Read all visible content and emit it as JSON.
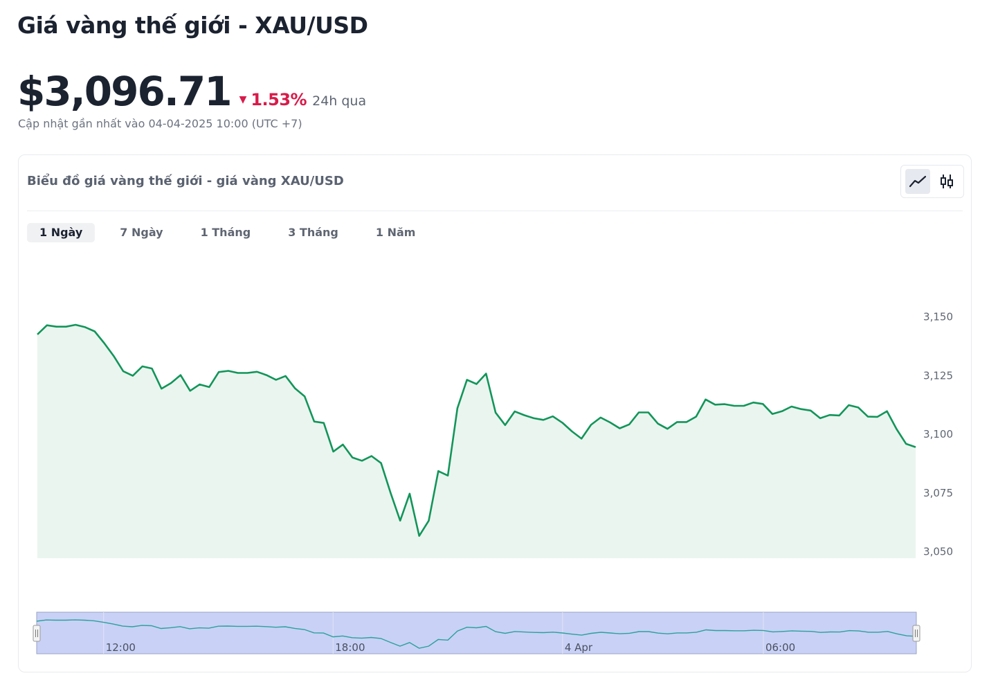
{
  "page": {
    "title": "Giá vàng thế giới - XAU/USD",
    "price": "$3,096.71",
    "change_direction": "down",
    "change_percent": "1.53%",
    "change_period": "24h qua",
    "updated": "Cập nhật gần nhất vào 04-04-2025 10:00 (UTC +7)"
  },
  "card": {
    "title": "Biểu đồ giá vàng thế giới - giá vàng XAU/USD",
    "chart_types": [
      {
        "name": "line",
        "icon": "line-chart-icon",
        "active": true
      },
      {
        "name": "candlestick",
        "icon": "candlestick-icon",
        "active": false
      }
    ],
    "ranges": [
      {
        "label": "1 Ngày",
        "active": true
      },
      {
        "label": "7 Ngày",
        "active": false
      },
      {
        "label": "1 Tháng",
        "active": false
      },
      {
        "label": "3 Tháng",
        "active": false
      },
      {
        "label": "1 Năm",
        "active": false
      }
    ]
  },
  "colors": {
    "line": "#12955a",
    "area": "#ebf5ef",
    "down": "#d81b4a",
    "navigator_fill": "#c9d1f6",
    "navigator_line": "#2aa19a"
  },
  "chart_data": {
    "type": "area",
    "y_ticks": [
      "3,150",
      "3,125",
      "3,100",
      "3,075",
      "3,050"
    ],
    "y_tick_values": [
      3150,
      3125,
      3100,
      3075,
      3050
    ],
    "ylim": [
      3050,
      3160
    ],
    "navigator_x_labels": [
      "12:00",
      "18:00",
      "4 Apr",
      "06:00"
    ],
    "navigator_x_label_index": [
      7,
      31,
      55,
      76
    ],
    "grid": false,
    "values": [
      3142.5,
      3146.4,
      3145.8,
      3145.8,
      3146.6,
      3145.6,
      3143.8,
      3138.8,
      3133.3,
      3126.8,
      3124.9,
      3128.9,
      3128.0,
      3119.4,
      3121.8,
      3125.2,
      3118.5,
      3121.2,
      3120.1,
      3126.5,
      3127.0,
      3126.1,
      3126.1,
      3126.6,
      3125.2,
      3123.2,
      3124.8,
      3119.5,
      3116.1,
      3105.4,
      3104.8,
      3092.6,
      3095.6,
      3090.1,
      3088.7,
      3090.7,
      3087.7,
      3075.0,
      3063.2,
      3074.7,
      3056.7,
      3063.2,
      3084.3,
      3082.4,
      3111.1,
      3123.2,
      3121.4,
      3125.8,
      3109.2,
      3103.9,
      3109.7,
      3108.1,
      3106.8,
      3106.1,
      3107.6,
      3104.9,
      3101.2,
      3098.1,
      3104.0,
      3107.1,
      3105.0,
      3102.5,
      3104.2,
      3109.3,
      3109.3,
      3104.5,
      3102.3,
      3105.2,
      3105.2,
      3107.5,
      3114.8,
      3112.6,
      3112.8,
      3112.1,
      3112.1,
      3113.5,
      3112.9,
      3108.6,
      3109.8,
      3111.8,
      3110.7,
      3110.1,
      3106.8,
      3108.2,
      3108.0,
      3112.4,
      3111.4,
      3107.5,
      3107.4,
      3109.8,
      3102.2,
      3095.9,
      3094.5
    ]
  }
}
